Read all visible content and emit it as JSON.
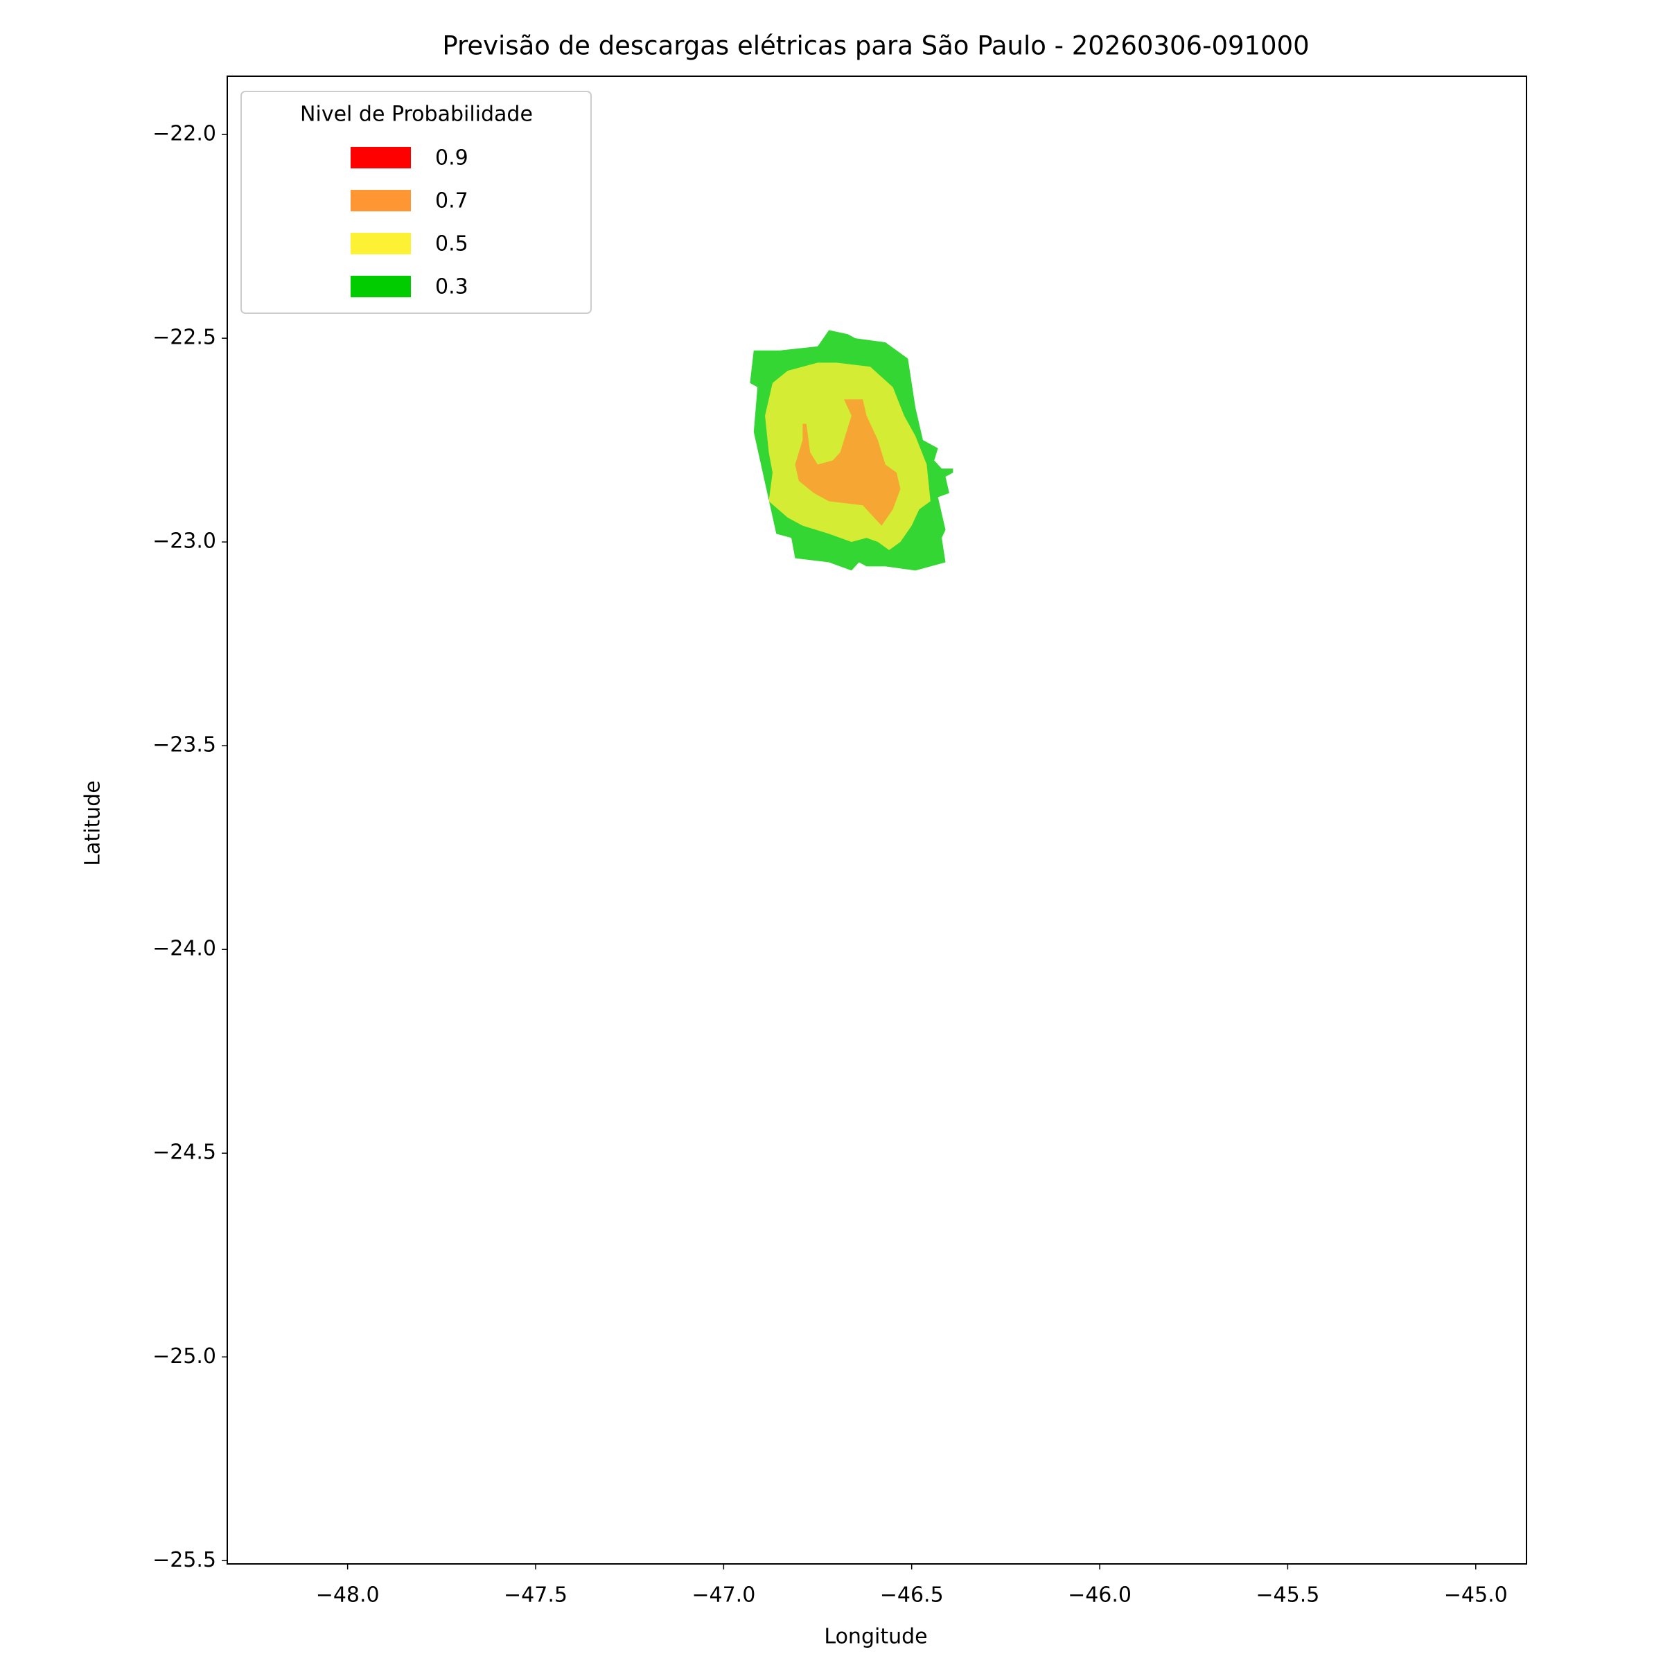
{
  "chart_data": {
    "type": "contour",
    "title": "Previsão de descargas elétricas para São Paulo - 20260306-091000",
    "x_label": "Longitude",
    "y_label": "Latitude",
    "legend_title": "Nivel de Probabilidade",
    "legend_loc": "upper left",
    "xlim": [
      -48.32,
      -44.865
    ],
    "ylim": [
      -25.508,
      -21.857
    ],
    "xticks": [
      {
        "value": -48,
        "label": "−48.0"
      },
      {
        "value": -47.5,
        "label": "−47.5"
      },
      {
        "value": -47,
        "label": "−47.0"
      },
      {
        "value": -46.5,
        "label": "−46.5"
      },
      {
        "value": -46,
        "label": "−46.0"
      },
      {
        "value": -45.5,
        "label": "−45.5"
      },
      {
        "value": -45,
        "label": "−45.0"
      }
    ],
    "yticks": [
      {
        "value": -22,
        "label": "−22.0"
      },
      {
        "value": -22.5,
        "label": "−22.5"
      },
      {
        "value": -23,
        "label": "−23.0"
      },
      {
        "value": -23.5,
        "label": "−23.5"
      },
      {
        "value": -24,
        "label": "−24.0"
      },
      {
        "value": -24.5,
        "label": "−24.5"
      },
      {
        "value": -25,
        "label": "−25.0"
      },
      {
        "value": -25.5,
        "label": "−25.5"
      }
    ],
    "series": [
      {
        "name": "0.9",
        "color": "#ff0000"
      },
      {
        "name": "0.7",
        "color": "#fe9633",
        "x": [
          -46.68,
          -46.63,
          -46.62,
          -46.59,
          -46.57,
          -46.54,
          -46.53,
          -46.55,
          -46.58,
          -46.61,
          -46.63,
          -46.72,
          -46.76,
          -46.8,
          -46.81,
          -46.79,
          -46.79,
          -46.78,
          -46.77,
          -46.75,
          -46.71,
          -46.69,
          -46.66
        ],
        "y": [
          -22.65,
          -22.65,
          -22.69,
          -22.75,
          -22.81,
          -22.83,
          -22.87,
          -22.92,
          -22.96,
          -22.93,
          -22.91,
          -22.9,
          -22.88,
          -22.85,
          -22.81,
          -22.75,
          -22.71,
          -22.71,
          -22.78,
          -22.81,
          -22.8,
          -22.78,
          -22.69
        ]
      },
      {
        "name": "0.5",
        "color": "#fcf133",
        "x": [
          -46.89,
          -46.87,
          -46.83,
          -46.75,
          -46.7,
          -46.61,
          -46.55,
          -46.52,
          -46.49,
          -46.46,
          -46.45,
          -46.48,
          -46.5,
          -46.53,
          -46.56,
          -46.59,
          -46.62,
          -46.66,
          -46.72,
          -46.79,
          -46.83,
          -46.88,
          -46.87,
          -46.88
        ],
        "y": [
          -22.69,
          -22.61,
          -22.58,
          -22.56,
          -22.56,
          -22.57,
          -22.62,
          -22.69,
          -22.74,
          -22.81,
          -22.9,
          -22.92,
          -22.96,
          -23.0,
          -23.02,
          -23.0,
          -22.99,
          -23.0,
          -22.98,
          -22.96,
          -22.94,
          -22.9,
          -22.83,
          -22.78
        ]
      },
      {
        "name": "0.3",
        "color": "#00cc00",
        "x": [
          -46.92,
          -46.85,
          -46.75,
          -46.72,
          -46.67,
          -46.65,
          -46.57,
          -46.51,
          -46.49,
          -46.47,
          -46.43,
          -46.44,
          -46.42,
          -46.39,
          -46.39,
          -46.41,
          -46.4,
          -46.43,
          -46.41,
          -46.42,
          -46.41,
          -46.49,
          -46.57,
          -46.62,
          -46.64,
          -46.66,
          -46.72,
          -46.81,
          -46.82,
          -46.86,
          -46.92,
          -46.91,
          -46.93
        ],
        "y": [
          -22.53,
          -22.53,
          -22.52,
          -22.48,
          -22.49,
          -22.5,
          -22.51,
          -22.55,
          -22.67,
          -22.75,
          -22.77,
          -22.8,
          -22.82,
          -22.82,
          -22.83,
          -22.84,
          -22.88,
          -22.89,
          -22.97,
          -22.99,
          -23.05,
          -23.07,
          -23.06,
          -23.06,
          -23.05,
          -23.07,
          -23.05,
          -23.04,
          -22.99,
          -22.98,
          -22.73,
          -22.62,
          -22.61
        ]
      }
    ]
  }
}
